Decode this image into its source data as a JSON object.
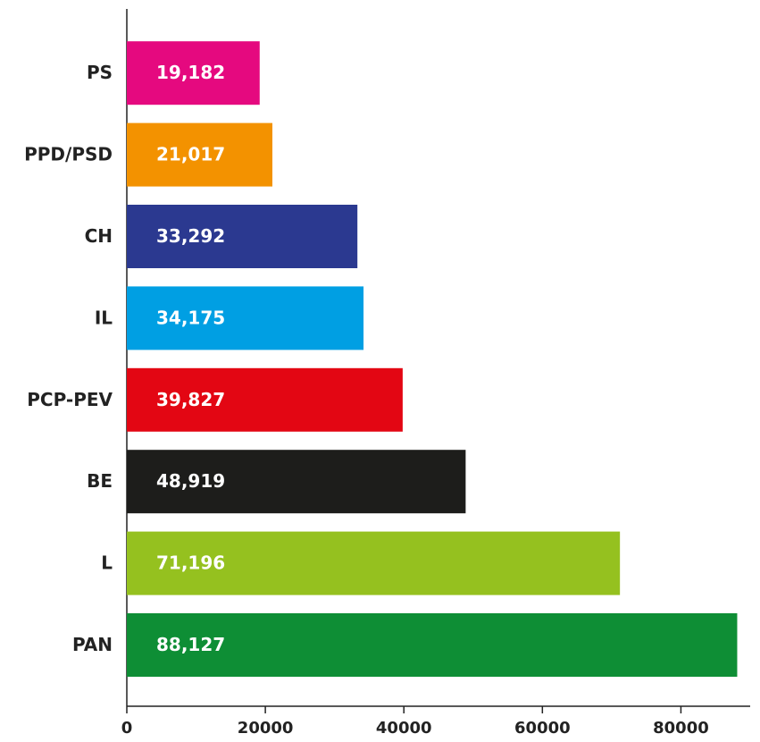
{
  "chart_data": {
    "type": "bar",
    "orientation": "horizontal",
    "categories": [
      "PS",
      "PPD/PSD",
      "CH",
      "IL",
      "PCP-PEV",
      "BE",
      "L",
      "PAN"
    ],
    "values": [
      19182,
      21017,
      33292,
      34175,
      39827,
      48919,
      71196,
      88127
    ],
    "value_labels": [
      "19,182",
      "21,017",
      "33,292",
      "34,175",
      "39,827",
      "48,919",
      "71,196",
      "88,127"
    ],
    "colors": [
      "#e5097f",
      "#f39200",
      "#2b3990",
      "#009fe3",
      "#e30613",
      "#1d1d1b",
      "#95c11f",
      "#0e8e35"
    ],
    "xlim": [
      0,
      90000
    ],
    "xticks": [
      0,
      20000,
      40000,
      60000,
      80000
    ]
  }
}
